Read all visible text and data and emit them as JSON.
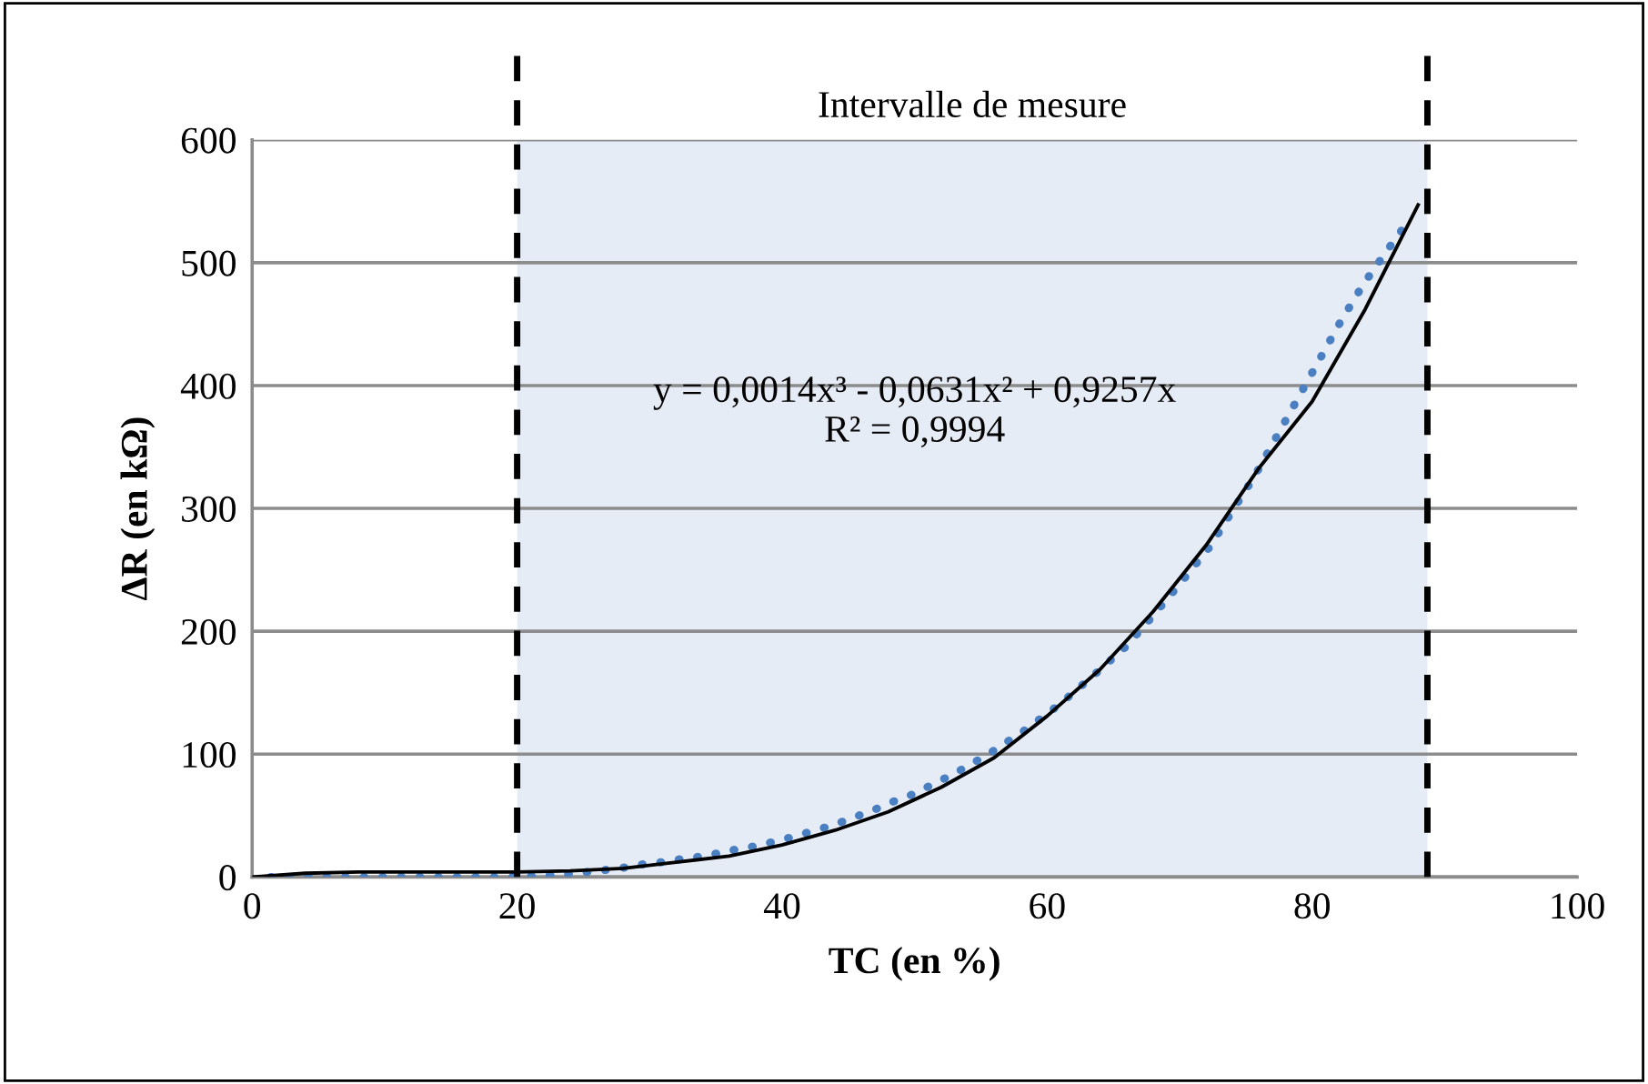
{
  "chart_data": {
    "type": "line",
    "xlabel": "TC (en %)",
    "ylabel": "ΔR (en kΩ)",
    "xlim": [
      0,
      100
    ],
    "xticks": [
      0,
      20,
      40,
      60,
      80,
      100
    ],
    "ylim": [
      0,
      600
    ],
    "yticks": [
      0,
      100,
      200,
      300,
      400,
      500,
      600
    ],
    "grid": "y",
    "legend": false,
    "series": [
      {
        "line_style": "dotted",
        "color": "#4a7fc1",
        "x": [
          1.4,
          4,
          7,
          10,
          13,
          16,
          19,
          22,
          24.4,
          26.1,
          27.7,
          29.3,
          30.9,
          32.6,
          34.2,
          35.8,
          37.5,
          39.1,
          40.6,
          42.2,
          43.8,
          45.3,
          46.8,
          48.3,
          49.8,
          51.3,
          52.8,
          54.3,
          55.7,
          58.4,
          61.0,
          63.6,
          66.0,
          68.1,
          70.2,
          72.3,
          74.1,
          75.7,
          77.4,
          79.0,
          80.6,
          82.2,
          83.9,
          85.8,
          86.8
        ],
        "values": [
          0,
          0,
          0,
          0,
          0,
          0,
          0,
          1,
          3,
          5,
          7,
          10,
          12,
          15,
          17,
          21,
          24,
          28,
          32,
          37,
          42,
          48,
          54,
          61,
          67,
          75,
          83,
          92,
          101,
          120,
          141,
          165,
          188,
          214,
          241,
          269,
          300,
          327,
          360,
          391,
          422,
          453,
          483,
          512,
          527
        ]
      },
      {
        "line_style": "solid",
        "color": "#000000",
        "x": [
          0,
          4,
          8,
          12,
          16,
          20,
          24,
          28,
          32,
          36,
          40,
          44,
          48,
          52,
          56,
          60,
          64,
          68,
          72,
          76,
          80,
          84,
          88
        ],
        "values": [
          0,
          3,
          4,
          4,
          4,
          4,
          5,
          7,
          12,
          17,
          26,
          38,
          53,
          73,
          97,
          131,
          169,
          216,
          270,
          333,
          387,
          462,
          547
        ]
      }
    ],
    "bands": [
      {
        "axis": "x",
        "from": 20,
        "to": 88.7,
        "label": "Intervalle de mesure",
        "color": "#e6ecf6"
      }
    ],
    "ref_lines": [
      {
        "axis": "x",
        "value": 20,
        "color": "#000000",
        "line_style": "dashed"
      },
      {
        "axis": "x",
        "value": 88.7,
        "color": "#000000",
        "line_style": "dashed"
      }
    ],
    "annotations": [
      "y = 0,0014x³ - 0,0631x² + 0,9257x\nR² = 0,9994"
    ]
  }
}
